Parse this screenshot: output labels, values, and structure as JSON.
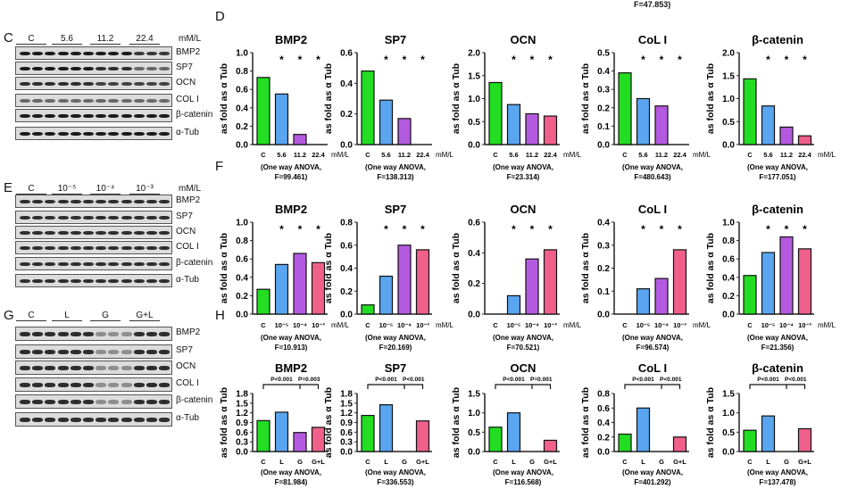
{
  "panels": {
    "C": "C",
    "D": "D",
    "E": "E",
    "F": "F",
    "G": "G",
    "H": "H"
  },
  "top_cut_text": "F=47.853)",
  "blots": [
    {
      "groups": [
        "C",
        "5.6",
        "11.2",
        "22.4"
      ],
      "unit": "mM/L",
      "rows": [
        "BMP2",
        "SP7",
        "OCN",
        "COL I",
        "β-catenin",
        "α-Tub"
      ]
    },
    {
      "groups": [
        "C",
        "10⁻⁵",
        "10⁻⁴",
        "10⁻³"
      ],
      "unit": "mM/L",
      "rows": [
        "BMP2",
        "SP7",
        "OCN",
        "COL I",
        "β-catenin",
        "α-Tub"
      ]
    },
    {
      "groups": [
        "C",
        "L",
        "G",
        "G+L"
      ],
      "unit": "",
      "rows": [
        "BMP2",
        "SP7",
        "OCN",
        "COL I",
        "β-catenin",
        "α-Tub"
      ]
    }
  ],
  "colors": {
    "C": "#22dd22",
    "g2": "#5aa5f0",
    "g3": "#b45ae0",
    "g4": "#f0608a"
  },
  "chart_data": [
    {
      "type": "bar",
      "title": "BMP2",
      "ylabel": "as fold as α Tub",
      "categories": [
        "C",
        "5.6",
        "11.2",
        "22.4"
      ],
      "unit": "mM/L",
      "values": [
        0.73,
        0.55,
        0.11,
        0
      ],
      "ylim": [
        0,
        1.0
      ],
      "yticks": [
        "0.0",
        "0.2",
        "0.4",
        "0.6",
        "0.8",
        "1.0"
      ],
      "stars": [
        "",
        "*",
        "*",
        "*"
      ],
      "anova": "(One way ANOVA,",
      "f": "F=99.461)"
    },
    {
      "type": "bar",
      "title": "SP7",
      "ylabel": "as fold as α Tub",
      "categories": [
        "C",
        "5.6",
        "11.2",
        "22.4"
      ],
      "unit": "mM/L",
      "values": [
        0.48,
        0.29,
        0.17,
        0
      ],
      "ylim": [
        0,
        0.6
      ],
      "yticks": [
        "0.0",
        "0.2",
        "0.4",
        "0.6"
      ],
      "stars": [
        "",
        "*",
        "*",
        "*"
      ],
      "anova": "(One way ANOVA,",
      "f": "F=138.313)"
    },
    {
      "type": "bar",
      "title": "OCN",
      "ylabel": "as fold as α Tub",
      "categories": [
        "C",
        "5.6",
        "11.2",
        "22.4"
      ],
      "unit": "mM/L",
      "values": [
        1.35,
        0.87,
        0.67,
        0.62
      ],
      "ylim": [
        0,
        2.0
      ],
      "yticks": [
        "0.0",
        "0.5",
        "1.0",
        "1.5",
        "2.0"
      ],
      "stars": [
        "",
        "*",
        "*",
        "*"
      ],
      "anova": "(One way ANOVA,",
      "f": "F=23.314)"
    },
    {
      "type": "bar",
      "title": "CoL I",
      "ylabel": "as fold as α Tub",
      "categories": [
        "C",
        "5.6",
        "11.2",
        "22.4"
      ],
      "unit": "mM/L",
      "values": [
        0.39,
        0.25,
        0.21,
        0
      ],
      "ylim": [
        0,
        0.5
      ],
      "yticks": [
        "0.0",
        "0.1",
        "0.2",
        "0.3",
        "0.4",
        "0.5"
      ],
      "stars": [
        "",
        "*",
        "*",
        "*"
      ],
      "anova": "(One way ANOVA,",
      "f": "F=480.643)"
    },
    {
      "type": "bar",
      "title": "β-catenin",
      "ylabel": "as fold as α Tub",
      "categories": [
        "C",
        "5.6",
        "11.2",
        "22.4"
      ],
      "unit": "mM/L",
      "values": [
        1.43,
        0.84,
        0.38,
        0.19
      ],
      "ylim": [
        0,
        2.0
      ],
      "yticks": [
        "0.0",
        "0.5",
        "1.0",
        "1.5",
        "2.0"
      ],
      "stars": [
        "",
        "*",
        "*",
        "*"
      ],
      "anova": "(One way ANOVA,",
      "f": "F=177.051)"
    },
    {
      "type": "bar",
      "title": "BMP2",
      "ylabel": "as fold as α Tub",
      "categories": [
        "C",
        "10⁻⁵",
        "10⁻⁴",
        "10⁻³"
      ],
      "unit": "mM/L",
      "values": [
        0.27,
        0.54,
        0.66,
        0.56
      ],
      "ylim": [
        0,
        1.0
      ],
      "yticks": [
        "0.0",
        "0.2",
        "0.4",
        "0.6",
        "0.8",
        "1.0"
      ],
      "stars": [
        "",
        "*",
        "*",
        "*"
      ],
      "anova": "(One way ANOVA,",
      "f": "F=10.913)"
    },
    {
      "type": "bar",
      "title": "SP7",
      "ylabel": "as fold as α Tub",
      "categories": [
        "C",
        "10⁻⁵",
        "10⁻⁴",
        "10⁻³"
      ],
      "unit": "mM/L",
      "values": [
        0.08,
        0.33,
        0.6,
        0.56
      ],
      "ylim": [
        0,
        0.8
      ],
      "yticks": [
        "0.0",
        "0.2",
        "0.4",
        "0.6",
        "0.8"
      ],
      "stars": [
        "",
        "*",
        "*",
        "*"
      ],
      "anova": "(One way ANOVA,",
      "f": "F=20.169)"
    },
    {
      "type": "bar",
      "title": "OCN",
      "ylabel": "as fold as α Tub",
      "categories": [
        "C",
        "10⁻⁵",
        "10⁻⁴",
        "10⁻³"
      ],
      "unit": "mM/L",
      "values": [
        0,
        0.12,
        0.36,
        0.42
      ],
      "ylim": [
        0,
        0.6
      ],
      "yticks": [
        "0.0",
        "0.2",
        "0.4",
        "0.6"
      ],
      "stars": [
        "",
        "*",
        "*",
        "*"
      ],
      "anova": "(One way ANOVA,",
      "f": "F=70.521)"
    },
    {
      "type": "bar",
      "title": "CoL I",
      "ylabel": "as fold as α Tub",
      "categories": [
        "C",
        "10⁻⁵",
        "10⁻⁴",
        "10⁻³"
      ],
      "unit": "mM/L",
      "values": [
        0,
        0.11,
        0.155,
        0.28
      ],
      "ylim": [
        0,
        0.4
      ],
      "yticks": [
        "0.0",
        "0.1",
        "0.2",
        "0.3",
        "0.4"
      ],
      "stars": [
        "",
        "*",
        "*",
        "*"
      ],
      "anova": "(One way ANOVA,",
      "f": "F=96.574)"
    },
    {
      "type": "bar",
      "title": "β-catenin",
      "ylabel": "as fold as α Tub",
      "categories": [
        "C",
        "10⁻⁵",
        "10⁻⁴",
        "10⁻³"
      ],
      "unit": "mM/L",
      "values": [
        0.42,
        0.67,
        0.84,
        0.71
      ],
      "ylim": [
        0,
        1.0
      ],
      "yticks": [
        "0.0",
        "0.2",
        "0.4",
        "0.6",
        "0.8",
        "1.0"
      ],
      "stars": [
        "",
        "*",
        "*",
        "*"
      ],
      "anova": "(One way ANOVA,",
      "f": "F=21.356)"
    },
    {
      "type": "bar",
      "title": "BMP2",
      "ylabel": "as fold as α Tub",
      "categories": [
        "C",
        "L",
        "G",
        "G+L"
      ],
      "unit": "",
      "values": [
        0.96,
        1.22,
        0.59,
        0.75
      ],
      "ylim": [
        0,
        1.8
      ],
      "yticks": [
        "0.0",
        "0.3",
        "0.6",
        "0.9",
        "1.2",
        "1.5",
        "1.8"
      ],
      "pvalues": [
        "P<0.001",
        "P=0.003"
      ],
      "anova": "(One way ANOVA,",
      "f": "F=81.984)"
    },
    {
      "type": "bar",
      "title": "SP7",
      "ylabel": "as fold as α Tub",
      "categories": [
        "C",
        "L",
        "G",
        "G+L"
      ],
      "unit": "",
      "values": [
        1.12,
        1.45,
        0,
        0.95
      ],
      "ylim": [
        0,
        1.8
      ],
      "yticks": [
        "0.0",
        "0.3",
        "0.6",
        "0.9",
        "1.2",
        "1.5",
        "1.8"
      ],
      "pvalues": [
        "P<0.001",
        "P<0.001"
      ],
      "anova": "(One way ANOVA,",
      "f": "F=336.553)"
    },
    {
      "type": "bar",
      "title": "OCN",
      "ylabel": "as fold as α Tub",
      "categories": [
        "C",
        "L",
        "G",
        "G+L"
      ],
      "unit": "",
      "values": [
        0.63,
        1.0,
        0,
        0.29
      ],
      "ylim": [
        0,
        1.5
      ],
      "yticks": [
        "0.0",
        "0.5",
        "1.0",
        "1.5"
      ],
      "pvalues": [
        "P<0.001",
        "P=0.001"
      ],
      "anova": "(One way ANOVA,",
      "f": "F=116.568)"
    },
    {
      "type": "bar",
      "title": "CoL I",
      "ylabel": "as fold as α Tub",
      "categories": [
        "C",
        "L",
        "G",
        "G+L"
      ],
      "unit": "",
      "values": [
        0.24,
        0.6,
        0,
        0.2
      ],
      "ylim": [
        0,
        0.8
      ],
      "yticks": [
        "0.0",
        "0.2",
        "0.4",
        "0.6",
        "0.8"
      ],
      "pvalues": [
        "P<0.001",
        "P<0.001"
      ],
      "anova": "(One way ANOVA,",
      "f": "F=401.292)"
    },
    {
      "type": "bar",
      "title": "β-catenin",
      "ylabel": "as fold as α Tub",
      "categories": [
        "C",
        "L",
        "G",
        "G+L"
      ],
      "unit": "",
      "values": [
        0.55,
        0.92,
        0,
        0.59
      ],
      "ylim": [
        0,
        1.5
      ],
      "yticks": [
        "0.0",
        "0.5",
        "1.0",
        "1.5"
      ],
      "pvalues": [
        "P<0.001",
        "P<0.001"
      ],
      "anova": "(One way ANOVA,",
      "f": "F=137.478)"
    }
  ]
}
